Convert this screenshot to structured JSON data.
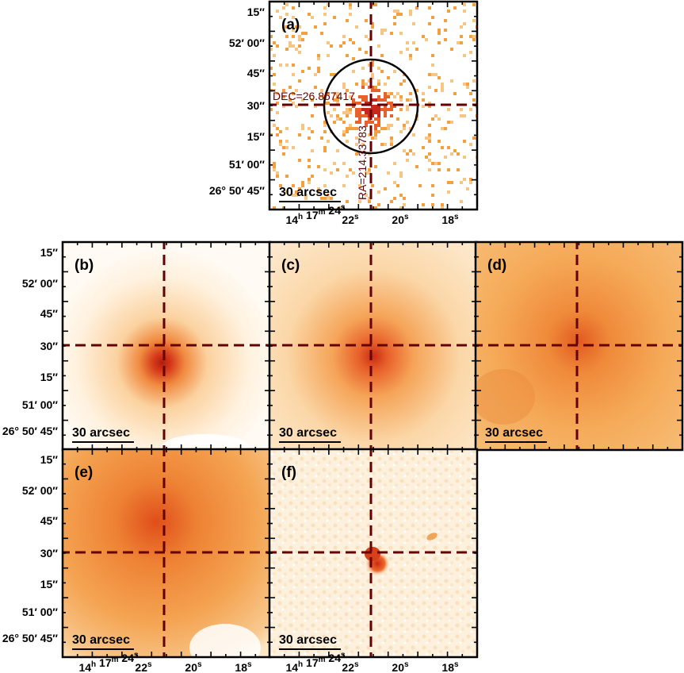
{
  "figure": {
    "panels": [
      {
        "id": "a",
        "label": "(a)",
        "kind": "counts",
        "scalebar_text": "30 arcsec",
        "dec_label": "DEC=26.857417",
        "ra_label": "RA=214.33783",
        "has_circle": true
      },
      {
        "id": "b",
        "label": "(b)",
        "kind": "smooth",
        "scalebar_text": "30 arcsec"
      },
      {
        "id": "c",
        "label": "(c)",
        "kind": "smooth",
        "scalebar_text": "30 arcsec"
      },
      {
        "id": "d",
        "label": "(d)",
        "kind": "broad",
        "scalebar_text": "30 arcsec"
      },
      {
        "id": "e",
        "label": "(e)",
        "kind": "broad-upper",
        "scalebar_text": "30 arcsec"
      },
      {
        "id": "f",
        "label": "(f)",
        "kind": "residual",
        "scalebar_text": "30 arcsec"
      }
    ],
    "dec_ticks": [
      "15″",
      "52′ 00″",
      "45″",
      "30″",
      "15″",
      "51′ 00″",
      "26° 50′ 45″"
    ],
    "ra_ticks": [
      {
        "main": "14",
        "sup": "h",
        "main2": " 17",
        "sup2": "m",
        "main3": " 24",
        "sup3": "s"
      },
      {
        "main": "22",
        "sup": "s"
      },
      {
        "main": "20",
        "sup": "s"
      },
      {
        "main": "18",
        "sup": "s"
      }
    ],
    "colors": {
      "cmap_light": "#fff8ee",
      "cmap_mid": "#f5a040",
      "cmap_dark": "#c8281a",
      "crosshair": "#650000"
    }
  }
}
